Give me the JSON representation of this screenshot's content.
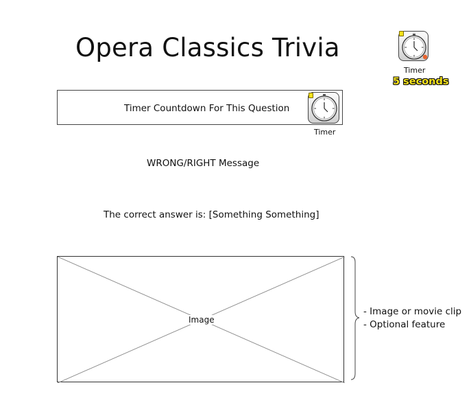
{
  "title": "Opera Classics Trivia",
  "top_timer": {
    "icon": "timer-icon",
    "label": "Timer",
    "duration": "5 seconds"
  },
  "countdown": {
    "text": "Timer Countdown For This Question",
    "icon": "timer-icon",
    "label": "Timer"
  },
  "result_message": "WRONG/RIGHT Message",
  "correct_answer": "The correct answer is: [Something Something]",
  "image_placeholder": {
    "label": "Image",
    "notes": [
      "- Image or movie clip",
      "- Optional feature"
    ]
  },
  "colors": {
    "duration_text": "#f5e21b",
    "badge": "#f5e21b",
    "timer_dot": "#e8622c",
    "border": "#444444"
  }
}
